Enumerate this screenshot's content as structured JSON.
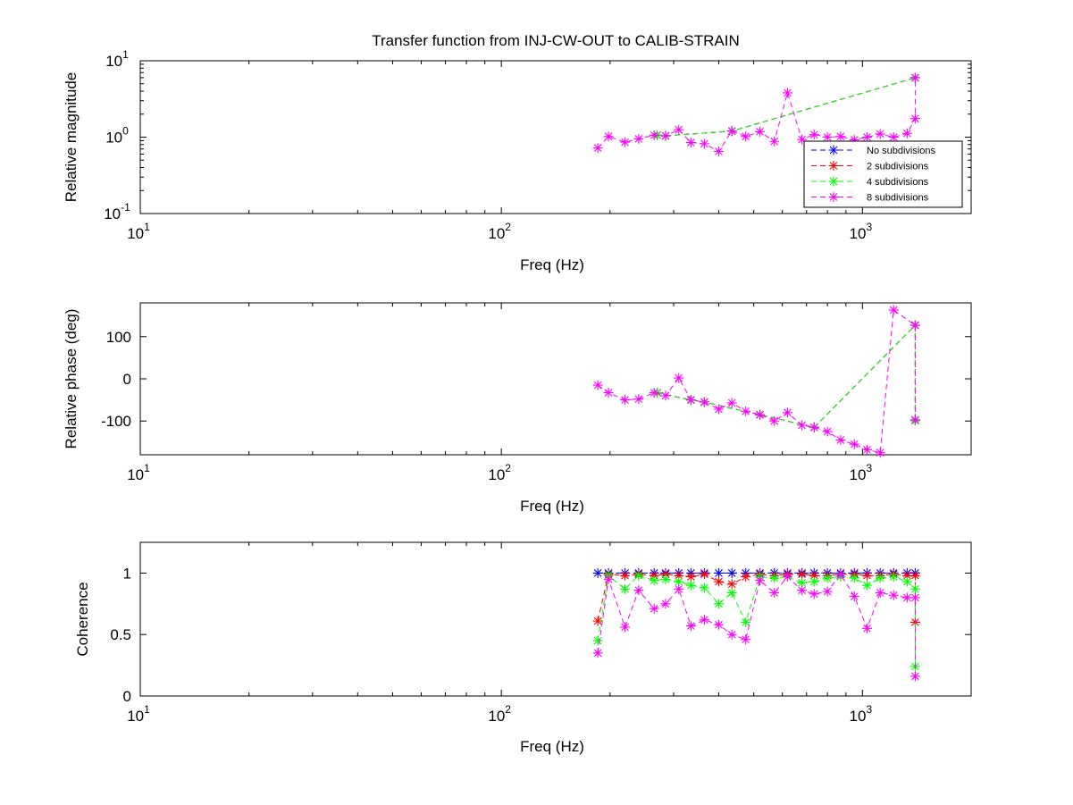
{
  "figure_title": "Transfer function from INJ-CW-OUT to CALIB-STRAIN",
  "colors": {
    "no_sub": "#0000ff",
    "sub2": "#ff0000",
    "sub4": "#00ff00",
    "sub8": "#ff00ff",
    "black": "#000000"
  },
  "chart_data": [
    {
      "type": "line",
      "title": "Transfer function from INJ-CW-OUT to CALIB-STRAIN",
      "xlabel": "Freq (Hz)",
      "ylabel": "Relative magnitude",
      "xscale": "log",
      "yscale": "log",
      "xlim": [
        10,
        2000
      ],
      "ylim": [
        0.1,
        10
      ],
      "xticks": [
        {
          "base": "10",
          "exp": "1"
        },
        {
          "base": "10",
          "exp": "2"
        },
        {
          "base": "10",
          "exp": "3"
        }
      ],
      "yticks": [
        {
          "base": "10",
          "exp": "-1"
        },
        {
          "base": "10",
          "exp": "0"
        },
        {
          "base": "10",
          "exp": "1"
        }
      ],
      "legend": {
        "position": "right-center",
        "entries": [
          "No subdivisions",
          "2 subdivisions",
          "4 subdivisions",
          "8 subdivisions"
        ]
      },
      "series": [
        {
          "name": "No subdivisions",
          "color": "#0000ff",
          "x": [
            270,
            285,
            435,
            1400
          ],
          "y": [
            1.06,
            1.04,
            1.2,
            6.0
          ]
        },
        {
          "name": "2 subdivisions",
          "color": "#ff0000",
          "x": [
            270,
            285,
            435,
            1400
          ],
          "y": [
            1.06,
            1.04,
            1.2,
            6.0
          ]
        },
        {
          "name": "4 subdivisions",
          "color": "#00ff00",
          "x": [
            270,
            285,
            435,
            1400
          ],
          "y": [
            1.06,
            1.04,
            1.2,
            6.0
          ]
        },
        {
          "name": "8 subdivisions",
          "color": "#ff00ff",
          "x": [
            185,
            198,
            220,
            240,
            265,
            285,
            310,
            335,
            365,
            400,
            435,
            475,
            520,
            570,
            620,
            680,
            735,
            800,
            870,
            950,
            1030,
            1120,
            1220,
            1330,
            1400,
            1400
          ],
          "y": [
            0.72,
            1.02,
            0.86,
            0.95,
            1.06,
            1.04,
            1.25,
            0.85,
            0.82,
            0.65,
            1.2,
            1.02,
            1.18,
            0.88,
            3.8,
            0.93,
            1.08,
            1.0,
            1.02,
            0.92,
            1.0,
            1.1,
            1.0,
            1.12,
            1.75,
            6.0
          ]
        }
      ]
    },
    {
      "type": "line",
      "xlabel": "Freq (Hz)",
      "ylabel": "Relative phase (deg)",
      "xscale": "log",
      "xlim": [
        10,
        2000
      ],
      "ylim": [
        -180,
        180
      ],
      "xticks": [
        {
          "base": "10",
          "exp": "1"
        },
        {
          "base": "10",
          "exp": "2"
        },
        {
          "base": "10",
          "exp": "3"
        }
      ],
      "yticks": [
        -100,
        0,
        100
      ],
      "series": [
        {
          "name": "No subdivisions",
          "color": "#0000ff",
          "x": [
            270,
            335,
            365,
            520,
            735,
            1400,
            1400
          ],
          "y": [
            -33,
            -50,
            -55,
            -85,
            -115,
            127,
            -99
          ]
        },
        {
          "name": "2 subdivisions",
          "color": "#ff0000",
          "x": [
            270,
            335,
            365,
            520,
            735,
            1400,
            1400
          ],
          "y": [
            -33,
            -50,
            -55,
            -85,
            -115,
            127,
            -99
          ]
        },
        {
          "name": "4 subdivisions",
          "color": "#00ff00",
          "x": [
            270,
            335,
            365,
            520,
            735,
            1400,
            1400
          ],
          "y": [
            -33,
            -50,
            -55,
            -85,
            -115,
            127,
            -99
          ]
        },
        {
          "name": "8 subdivisions",
          "color": "#ff00ff",
          "x": [
            185,
            198,
            220,
            240,
            265,
            285,
            310,
            335,
            365,
            400,
            435,
            475,
            520,
            570,
            620,
            680,
            735,
            800,
            870,
            950,
            1030,
            1120,
            1220,
            1400,
            1400
          ],
          "y": [
            -15,
            -33,
            -50,
            -48,
            -33,
            -40,
            2,
            -50,
            -55,
            -72,
            -57,
            -77,
            -85,
            -100,
            -80,
            -110,
            -115,
            -125,
            -145,
            -155,
            -168,
            -175,
            163,
            127,
            -97
          ]
        }
      ]
    },
    {
      "type": "line",
      "xlabel": "Freq (Hz)",
      "ylabel": "Coherence",
      "xscale": "log",
      "xlim": [
        10,
        2000
      ],
      "ylim": [
        0,
        1.25
      ],
      "xticks": [
        {
          "base": "10",
          "exp": "1"
        },
        {
          "base": "10",
          "exp": "2"
        },
        {
          "base": "10",
          "exp": "3"
        }
      ],
      "yticks": [
        "0",
        "0.5",
        "1"
      ],
      "series": [
        {
          "name": "No subdivisions",
          "color": "#0000ff",
          "x": [
            185,
            198,
            220,
            240,
            265,
            285,
            310,
            335,
            365,
            400,
            435,
            475,
            520,
            570,
            620,
            680,
            735,
            800,
            870,
            950,
            1030,
            1120,
            1220,
            1330,
            1400
          ],
          "y": [
            1,
            1,
            1,
            1,
            1,
            1,
            1,
            1,
            1,
            1,
            1,
            1,
            1,
            1,
            1,
            1,
            1,
            1,
            1,
            1,
            1,
            1,
            1,
            1,
            1
          ]
        },
        {
          "name": "2 subdivisions",
          "color": "#ff0000",
          "x": [
            185,
            198,
            220,
            240,
            265,
            285,
            310,
            335,
            365,
            400,
            435,
            475,
            520,
            570,
            620,
            680,
            735,
            800,
            870,
            950,
            1030,
            1120,
            1220,
            1330,
            1400,
            1400
          ],
          "y": [
            0.61,
            0.99,
            0.98,
            0.99,
            0.98,
            0.99,
            0.98,
            0.97,
            0.99,
            0.93,
            0.91,
            0.97,
            0.99,
            0.98,
            0.99,
            0.99,
            0.98,
            0.98,
            0.99,
            0.99,
            0.98,
            0.98,
            0.99,
            0.98,
            0.98,
            0.6
          ]
        },
        {
          "name": "4 subdivisions",
          "color": "#00ff00",
          "x": [
            185,
            198,
            220,
            240,
            265,
            285,
            310,
            335,
            365,
            400,
            435,
            475,
            520,
            570,
            620,
            680,
            735,
            800,
            870,
            950,
            1030,
            1120,
            1220,
            1330,
            1400,
            1400
          ],
          "y": [
            0.45,
            0.98,
            0.87,
            0.98,
            0.94,
            0.95,
            0.93,
            0.9,
            0.88,
            0.75,
            0.84,
            0.6,
            0.97,
            0.96,
            0.97,
            0.92,
            0.93,
            0.96,
            0.97,
            0.96,
            0.9,
            0.96,
            0.97,
            0.93,
            0.87,
            0.24
          ]
        },
        {
          "name": "8 subdivisions",
          "color": "#ff00ff",
          "x": [
            185,
            198,
            220,
            240,
            265,
            285,
            310,
            335,
            365,
            400,
            435,
            475,
            520,
            570,
            620,
            680,
            735,
            800,
            870,
            950,
            1030,
            1120,
            1220,
            1330,
            1400,
            1400
          ],
          "y": [
            0.35,
            0.95,
            0.56,
            0.86,
            0.71,
            0.75,
            0.87,
            0.57,
            0.62,
            0.58,
            0.5,
            0.46,
            0.94,
            0.84,
            0.97,
            0.86,
            0.83,
            0.85,
            0.99,
            0.81,
            0.55,
            0.84,
            0.82,
            0.8,
            0.8,
            0.16
          ]
        }
      ]
    }
  ]
}
